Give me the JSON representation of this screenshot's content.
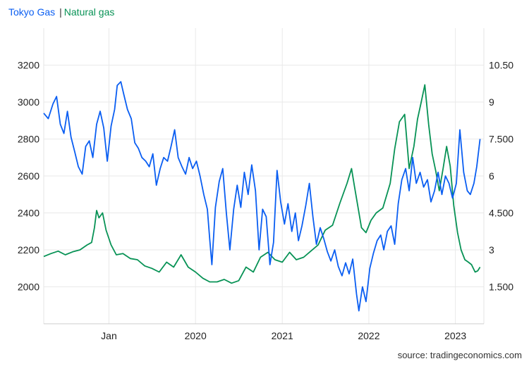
{
  "colors": {
    "tokyo_gas": "#0a5ef2",
    "natural_gas": "#079255",
    "grid": "#e9e9e9",
    "text": "#222222"
  },
  "legend": {
    "series_1": "Tokyo Gas",
    "separator": "|",
    "series_2": "Natural gas"
  },
  "source": "source: tradingeconomics.com",
  "chart_data": {
    "type": "line",
    "title": "",
    "grid": true,
    "legend_position": "top-left",
    "x_axis": {
      "domain": [
        "2018-04-01",
        "2023-05-01"
      ],
      "ticks": [
        {
          "date": "2019-01-01",
          "label": "Jan"
        },
        {
          "date": "2020-01-01",
          "label": "2020"
        },
        {
          "date": "2021-01-01",
          "label": "2021"
        },
        {
          "date": "2022-01-01",
          "label": "2022"
        },
        {
          "date": "2023-01-01",
          "label": "2023"
        }
      ]
    },
    "y_axis_left": {
      "label": "",
      "range": [
        1800,
        3400
      ],
      "ticks": [
        2000,
        2200,
        2400,
        2600,
        2800,
        3000,
        3200
      ]
    },
    "y_axis_right": {
      "label": "",
      "range": [
        0,
        12
      ],
      "ticks": [
        1.5,
        3,
        4.5,
        6,
        7.5,
        9,
        10.5
      ],
      "tick_labels": [
        "1.500",
        "3",
        "4.500",
        "6",
        "7.500",
        "9",
        "10.50"
      ]
    },
    "series": [
      {
        "name": "Tokyo Gas",
        "axis": "left",
        "points": [
          [
            "2018-04-01",
            2940
          ],
          [
            "2018-04-20",
            2910
          ],
          [
            "2018-05-10",
            2990
          ],
          [
            "2018-05-25",
            3030
          ],
          [
            "2018-06-10",
            2880
          ],
          [
            "2018-06-25",
            2830
          ],
          [
            "2018-07-10",
            2950
          ],
          [
            "2018-07-25",
            2810
          ],
          [
            "2018-08-10",
            2730
          ],
          [
            "2018-08-25",
            2650
          ],
          [
            "2018-09-10",
            2610
          ],
          [
            "2018-09-25",
            2760
          ],
          [
            "2018-10-10",
            2790
          ],
          [
            "2018-10-25",
            2700
          ],
          [
            "2018-11-10",
            2880
          ],
          [
            "2018-11-25",
            2950
          ],
          [
            "2018-12-10",
            2860
          ],
          [
            "2018-12-25",
            2680
          ],
          [
            "2019-01-10",
            2870
          ],
          [
            "2019-01-25",
            2960
          ],
          [
            "2019-02-05",
            3090
          ],
          [
            "2019-02-20",
            3110
          ],
          [
            "2019-03-05",
            3040
          ],
          [
            "2019-03-20",
            2960
          ],
          [
            "2019-04-05",
            2910
          ],
          [
            "2019-04-20",
            2780
          ],
          [
            "2019-05-05",
            2750
          ],
          [
            "2019-05-20",
            2700
          ],
          [
            "2019-06-05",
            2680
          ],
          [
            "2019-06-20",
            2650
          ],
          [
            "2019-07-05",
            2720
          ],
          [
            "2019-07-20",
            2550
          ],
          [
            "2019-08-05",
            2640
          ],
          [
            "2019-08-20",
            2700
          ],
          [
            "2019-09-05",
            2680
          ],
          [
            "2019-09-20",
            2760
          ],
          [
            "2019-10-05",
            2850
          ],
          [
            "2019-10-20",
            2700
          ],
          [
            "2019-11-05",
            2650
          ],
          [
            "2019-11-20",
            2610
          ],
          [
            "2019-12-05",
            2700
          ],
          [
            "2019-12-20",
            2640
          ],
          [
            "2020-01-05",
            2680
          ],
          [
            "2020-01-20",
            2600
          ],
          [
            "2020-02-05",
            2500
          ],
          [
            "2020-02-20",
            2420
          ],
          [
            "2020-03-01",
            2260
          ],
          [
            "2020-03-10",
            2120
          ],
          [
            "2020-03-25",
            2430
          ],
          [
            "2020-04-10",
            2570
          ],
          [
            "2020-04-25",
            2640
          ],
          [
            "2020-05-10",
            2400
          ],
          [
            "2020-05-25",
            2200
          ],
          [
            "2020-06-10",
            2420
          ],
          [
            "2020-06-25",
            2550
          ],
          [
            "2020-07-10",
            2430
          ],
          [
            "2020-07-25",
            2620
          ],
          [
            "2020-08-10",
            2500
          ],
          [
            "2020-08-25",
            2660
          ],
          [
            "2020-09-10",
            2520
          ],
          [
            "2020-09-25",
            2200
          ],
          [
            "2020-10-10",
            2420
          ],
          [
            "2020-10-25",
            2380
          ],
          [
            "2020-11-10",
            2120
          ],
          [
            "2020-11-25",
            2240
          ],
          [
            "2020-12-10",
            2630
          ],
          [
            "2020-12-25",
            2460
          ],
          [
            "2021-01-10",
            2340
          ],
          [
            "2021-01-25",
            2450
          ],
          [
            "2021-02-10",
            2300
          ],
          [
            "2021-02-25",
            2400
          ],
          [
            "2021-03-10",
            2250
          ],
          [
            "2021-03-25",
            2330
          ],
          [
            "2021-04-10",
            2440
          ],
          [
            "2021-04-25",
            2560
          ],
          [
            "2021-05-10",
            2380
          ],
          [
            "2021-05-25",
            2230
          ],
          [
            "2021-06-10",
            2320
          ],
          [
            "2021-06-25",
            2260
          ],
          [
            "2021-07-10",
            2190
          ],
          [
            "2021-07-25",
            2140
          ],
          [
            "2021-08-10",
            2200
          ],
          [
            "2021-08-25",
            2110
          ],
          [
            "2021-09-10",
            2060
          ],
          [
            "2021-09-25",
            2130
          ],
          [
            "2021-10-10",
            2070
          ],
          [
            "2021-10-25",
            2150
          ],
          [
            "2021-11-10",
            1960
          ],
          [
            "2021-11-20",
            1870
          ],
          [
            "2021-12-05",
            2000
          ],
          [
            "2021-12-20",
            1920
          ],
          [
            "2022-01-05",
            2100
          ],
          [
            "2022-01-20",
            2180
          ],
          [
            "2022-02-05",
            2250
          ],
          [
            "2022-02-20",
            2280
          ],
          [
            "2022-03-05",
            2200
          ],
          [
            "2022-03-20",
            2300
          ],
          [
            "2022-04-05",
            2330
          ],
          [
            "2022-04-20",
            2230
          ],
          [
            "2022-05-05",
            2450
          ],
          [
            "2022-05-20",
            2580
          ],
          [
            "2022-06-05",
            2640
          ],
          [
            "2022-06-20",
            2520
          ],
          [
            "2022-07-05",
            2700
          ],
          [
            "2022-07-20",
            2560
          ],
          [
            "2022-08-05",
            2620
          ],
          [
            "2022-08-20",
            2540
          ],
          [
            "2022-09-05",
            2580
          ],
          [
            "2022-09-20",
            2460
          ],
          [
            "2022-10-05",
            2520
          ],
          [
            "2022-10-20",
            2620
          ],
          [
            "2022-11-05",
            2500
          ],
          [
            "2022-11-20",
            2600
          ],
          [
            "2022-12-05",
            2560
          ],
          [
            "2022-12-20",
            2480
          ],
          [
            "2023-01-05",
            2560
          ],
          [
            "2023-01-20",
            2850
          ],
          [
            "2023-02-05",
            2620
          ],
          [
            "2023-02-20",
            2520
          ],
          [
            "2023-03-05",
            2500
          ],
          [
            "2023-03-20",
            2560
          ],
          [
            "2023-04-01",
            2650
          ],
          [
            "2023-04-15",
            2800
          ]
        ]
      },
      {
        "name": "Natural gas",
        "axis": "right",
        "points": [
          [
            "2018-04-01",
            2.73
          ],
          [
            "2018-05-01",
            2.85
          ],
          [
            "2018-06-01",
            2.95
          ],
          [
            "2018-07-01",
            2.8
          ],
          [
            "2018-08-01",
            2.92
          ],
          [
            "2018-09-01",
            3.0
          ],
          [
            "2018-10-01",
            3.2
          ],
          [
            "2018-10-20",
            3.3
          ],
          [
            "2018-11-01",
            3.9
          ],
          [
            "2018-11-10",
            4.6
          ],
          [
            "2018-11-20",
            4.3
          ],
          [
            "2018-12-05",
            4.5
          ],
          [
            "2018-12-20",
            3.8
          ],
          [
            "2019-01-10",
            3.2
          ],
          [
            "2019-02-01",
            2.8
          ],
          [
            "2019-03-01",
            2.85
          ],
          [
            "2019-04-01",
            2.65
          ],
          [
            "2019-05-01",
            2.6
          ],
          [
            "2019-06-01",
            2.35
          ],
          [
            "2019-07-01",
            2.25
          ],
          [
            "2019-08-01",
            2.1
          ],
          [
            "2019-09-01",
            2.5
          ],
          [
            "2019-10-01",
            2.3
          ],
          [
            "2019-11-01",
            2.8
          ],
          [
            "2019-12-01",
            2.3
          ],
          [
            "2020-01-01",
            2.1
          ],
          [
            "2020-02-01",
            1.85
          ],
          [
            "2020-03-01",
            1.7
          ],
          [
            "2020-04-01",
            1.7
          ],
          [
            "2020-05-01",
            1.8
          ],
          [
            "2020-06-01",
            1.65
          ],
          [
            "2020-07-01",
            1.75
          ],
          [
            "2020-08-01",
            2.3
          ],
          [
            "2020-09-01",
            2.1
          ],
          [
            "2020-10-01",
            2.7
          ],
          [
            "2020-11-01",
            2.9
          ],
          [
            "2020-12-01",
            2.6
          ],
          [
            "2021-01-01",
            2.5
          ],
          [
            "2021-02-01",
            2.9
          ],
          [
            "2021-03-01",
            2.6
          ],
          [
            "2021-04-01",
            2.7
          ],
          [
            "2021-05-01",
            2.95
          ],
          [
            "2021-06-01",
            3.2
          ],
          [
            "2021-07-01",
            3.8
          ],
          [
            "2021-08-01",
            4.0
          ],
          [
            "2021-09-01",
            4.9
          ],
          [
            "2021-10-01",
            5.7
          ],
          [
            "2021-10-20",
            6.3
          ],
          [
            "2021-11-01",
            5.6
          ],
          [
            "2021-12-01",
            3.9
          ],
          [
            "2021-12-20",
            3.7
          ],
          [
            "2022-01-10",
            4.2
          ],
          [
            "2022-02-01",
            4.5
          ],
          [
            "2022-03-01",
            4.7
          ],
          [
            "2022-04-01",
            5.7
          ],
          [
            "2022-04-20",
            7.1
          ],
          [
            "2022-05-10",
            8.2
          ],
          [
            "2022-06-01",
            8.5
          ],
          [
            "2022-06-20",
            6.3
          ],
          [
            "2022-07-10",
            7.2
          ],
          [
            "2022-07-25",
            8.3
          ],
          [
            "2022-08-10",
            9.0
          ],
          [
            "2022-08-25",
            9.7
          ],
          [
            "2022-09-10",
            8.1
          ],
          [
            "2022-09-25",
            6.9
          ],
          [
            "2022-10-10",
            6.2
          ],
          [
            "2022-10-25",
            5.4
          ],
          [
            "2022-11-10",
            6.3
          ],
          [
            "2022-11-25",
            7.2
          ],
          [
            "2022-12-10",
            6.4
          ],
          [
            "2022-12-25",
            4.8
          ],
          [
            "2023-01-10",
            3.7
          ],
          [
            "2023-01-25",
            3.0
          ],
          [
            "2023-02-10",
            2.6
          ],
          [
            "2023-02-25",
            2.5
          ],
          [
            "2023-03-10",
            2.4
          ],
          [
            "2023-03-25",
            2.1
          ],
          [
            "2023-04-05",
            2.15
          ],
          [
            "2023-04-15",
            2.3
          ]
        ]
      }
    ]
  }
}
